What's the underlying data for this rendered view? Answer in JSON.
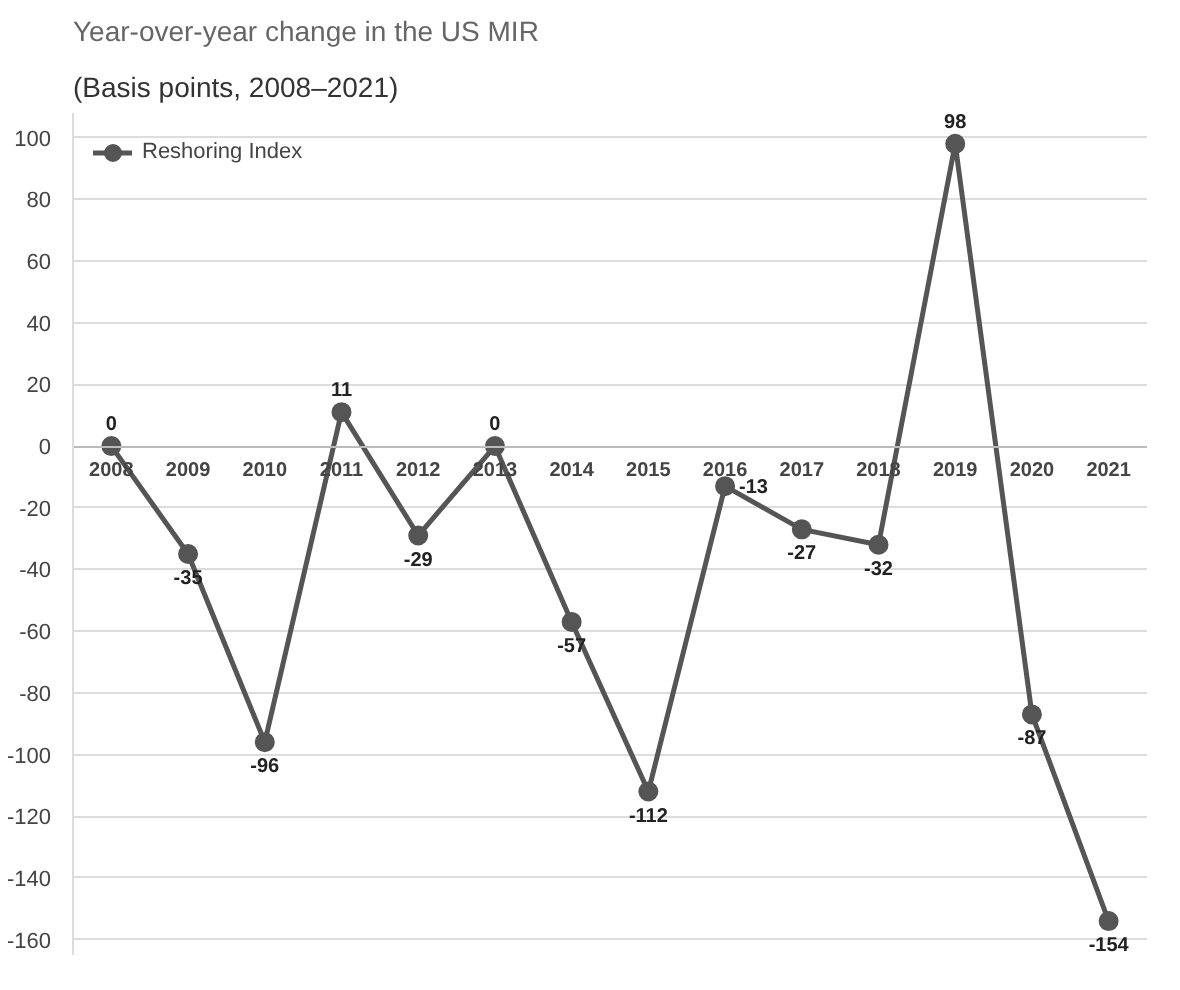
{
  "chart_data": {
    "type": "line",
    "title": "Year-over-year change in the US MIR",
    "subtitle": "(Basis points, 2008–2021)",
    "categories": [
      "2008",
      "2009",
      "2010",
      "2011",
      "2012",
      "2013",
      "2014",
      "2015",
      "2016",
      "2017",
      "2018",
      "2019",
      "2020",
      "2021"
    ],
    "series": [
      {
        "name": "Reshoring Index",
        "color": "#555555",
        "values": [
          0,
          -35,
          -96,
          11,
          -29,
          0,
          -57,
          -112,
          -13,
          -27,
          -32,
          98,
          -87,
          -154
        ]
      }
    ],
    "ylim": [
      -165,
      108
    ],
    "yticks": [
      -160,
      -140,
      -120,
      -100,
      -80,
      -60,
      -40,
      -20,
      0,
      20,
      40,
      60,
      80,
      100
    ],
    "grid": "y",
    "legend": "top left",
    "marker": "circle",
    "line_style": "solid",
    "data_labels": true
  }
}
